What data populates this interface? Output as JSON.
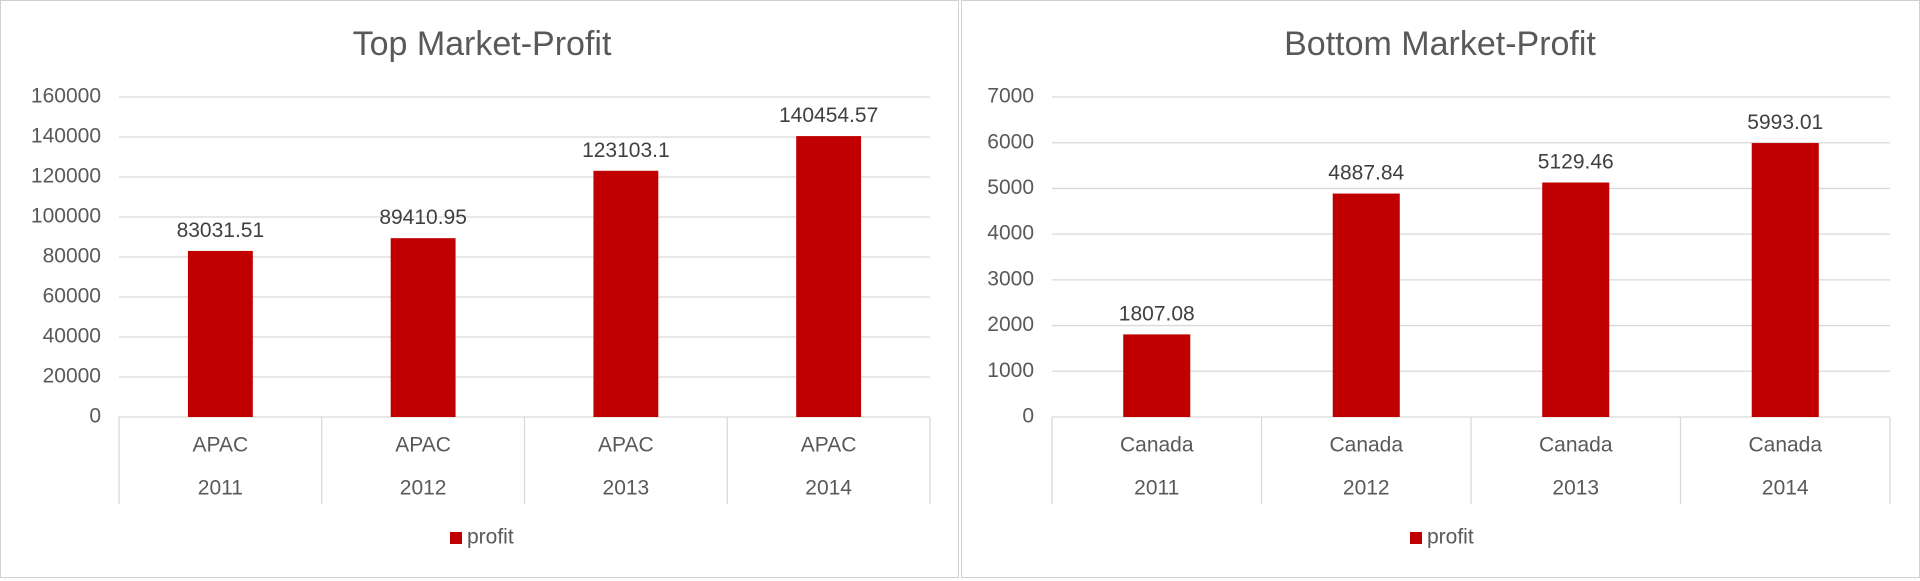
{
  "colors": {
    "bar": "#c00000",
    "grid": "#d9d9d9",
    "text": "#595959"
  },
  "chart_data": [
    {
      "type": "bar",
      "title": "Top Market-Profit",
      "categories": [
        {
          "market": "APAC",
          "year": "2011"
        },
        {
          "market": "APAC",
          "year": "2012"
        },
        {
          "market": "APAC",
          "year": "2013"
        },
        {
          "market": "APAC",
          "year": "2014"
        }
      ],
      "series": [
        {
          "name": "profit",
          "values": [
            83031.51,
            89410.95,
            123103.1,
            140454.57
          ]
        }
      ],
      "data_labels": [
        "83031.51",
        "89410.95",
        "123103.1",
        "140454.57"
      ],
      "ylim": [
        0,
        160000
      ],
      "yticks": [
        0,
        20000,
        40000,
        60000,
        80000,
        100000,
        120000,
        140000,
        160000
      ],
      "grid": true,
      "legend": "bottom"
    },
    {
      "type": "bar",
      "title": "Bottom Market-Profit",
      "categories": [
        {
          "market": "Canada",
          "year": "2011"
        },
        {
          "market": "Canada",
          "year": "2012"
        },
        {
          "market": "Canada",
          "year": "2013"
        },
        {
          "market": "Canada",
          "year": "2014"
        }
      ],
      "series": [
        {
          "name": "profit",
          "values": [
            1807.08,
            4887.84,
            5129.46,
            5993.01
          ]
        }
      ],
      "data_labels": [
        "1807.08",
        "4887.84",
        "5129.46",
        "5993.01"
      ],
      "ylim": [
        0,
        7000
      ],
      "yticks": [
        0,
        1000,
        2000,
        3000,
        4000,
        5000,
        6000,
        7000
      ],
      "grid": true,
      "legend": "bottom"
    }
  ]
}
